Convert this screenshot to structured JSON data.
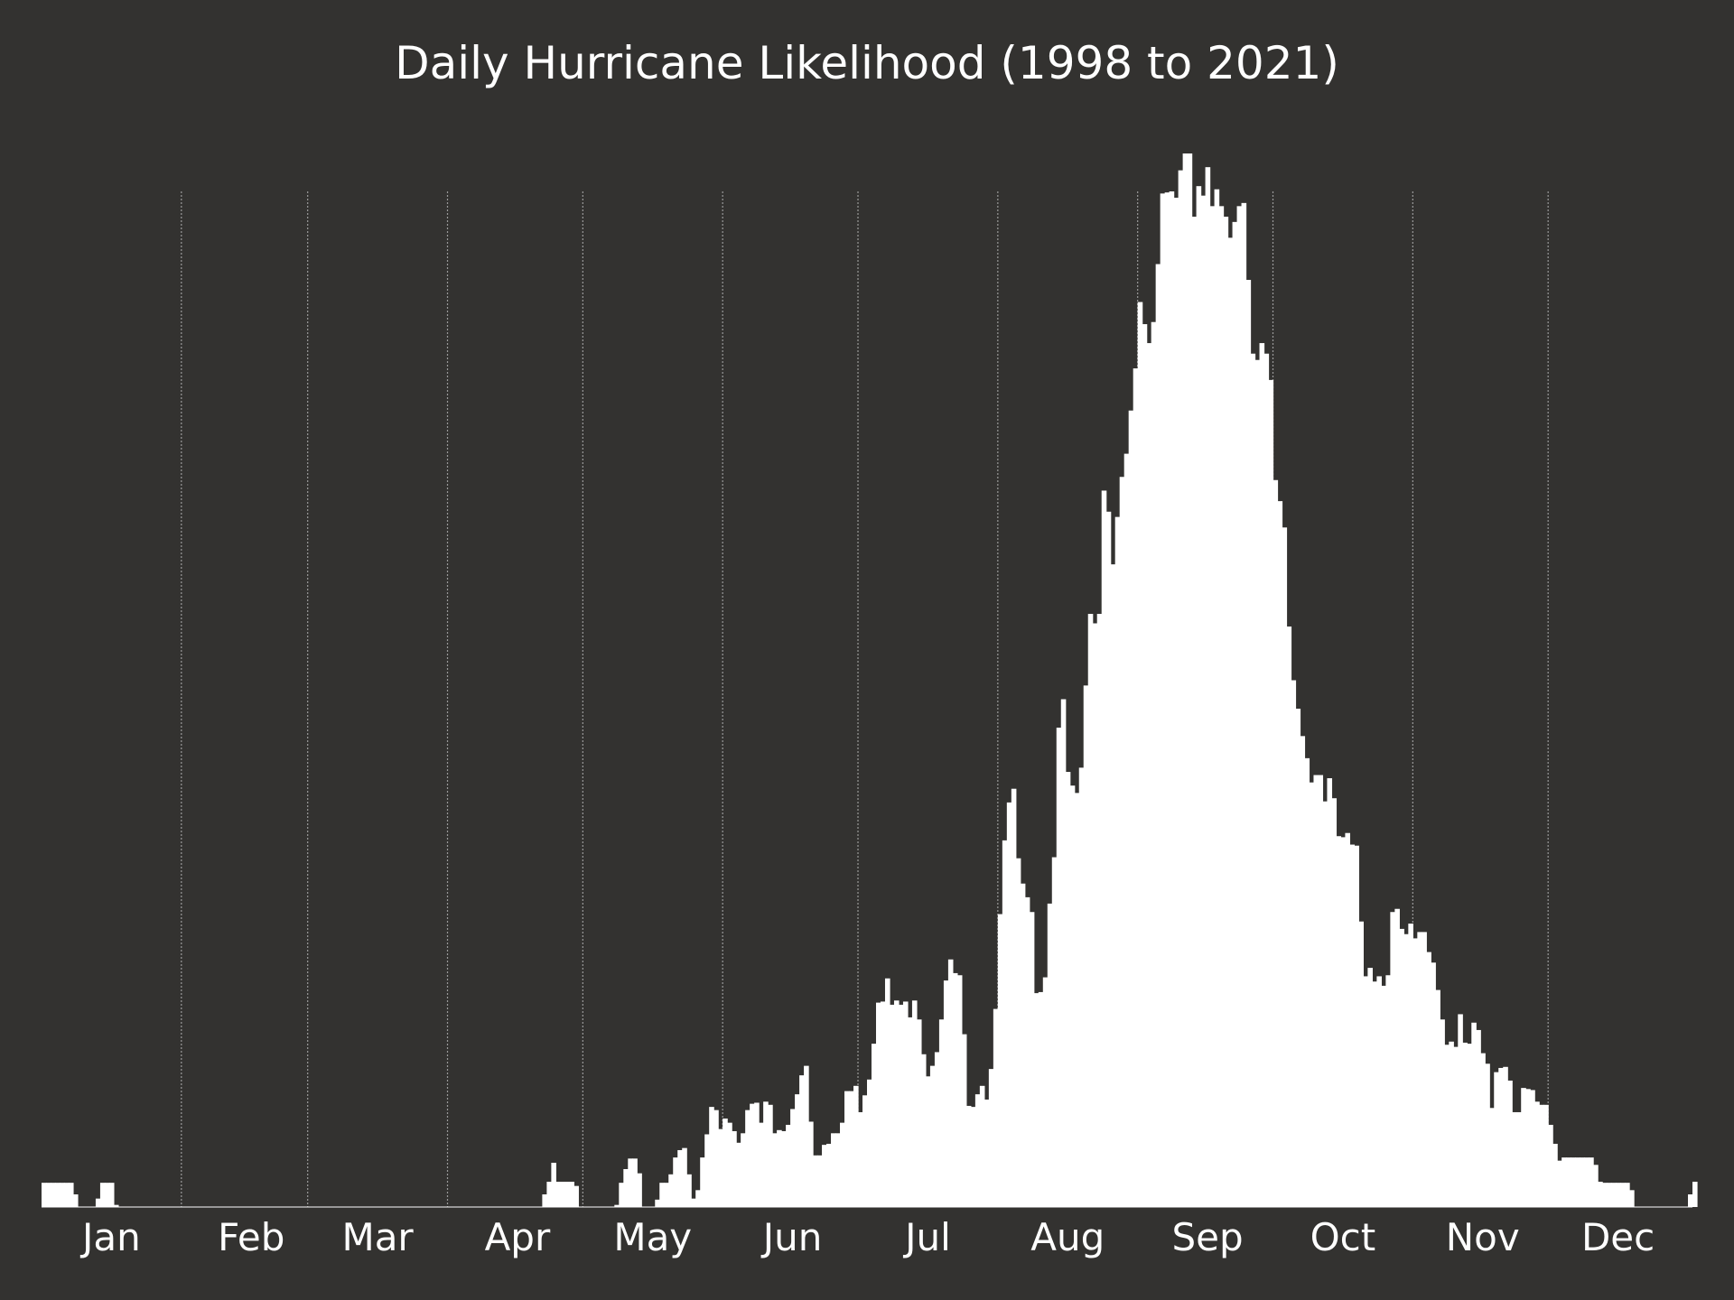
{
  "chart_data": {
    "type": "bar",
    "title": "Daily Hurricane Likelihood (1998 to 2021)",
    "xlabel": "",
    "ylabel": "",
    "x_range": [
      1,
      366
    ],
    "month_ticks": [
      {
        "label": "Jan",
        "day": 16
      },
      {
        "label": "Feb",
        "day": 47
      },
      {
        "label": "Mar",
        "day": 75
      },
      {
        "label": "Apr",
        "day": 106
      },
      {
        "label": "May",
        "day": 136
      },
      {
        "label": "Jun",
        "day": 167
      },
      {
        "label": "Jul",
        "day": 197
      },
      {
        "label": "Aug",
        "day": 228
      },
      {
        "label": "Sep",
        "day": 259
      },
      {
        "label": "Oct",
        "day": 289
      },
      {
        "label": "Nov",
        "day": 320
      },
      {
        "label": "Dec",
        "day": 350
      }
    ],
    "month_boundaries": [
      32,
      60,
      91,
      121,
      152,
      182,
      213,
      244,
      274,
      305,
      335
    ],
    "ylim": [
      0,
      1
    ],
    "grid": "vertical dotted lines at month boundaries",
    "y_axis_visible": false,
    "values": [
      0.023,
      0.023,
      0.023,
      0.023,
      0.023,
      0.023,
      0.023,
      0.012,
      0,
      0,
      0,
      0,
      0.008,
      0.023,
      0.023,
      0.023,
      0.002,
      0,
      0,
      0,
      0,
      0,
      0,
      0,
      0,
      0,
      0,
      0,
      0,
      0,
      0,
      0,
      0,
      0,
      0,
      0,
      0,
      0,
      0,
      0,
      0,
      0,
      0,
      0,
      0,
      0,
      0,
      0,
      0,
      0,
      0,
      0,
      0,
      0,
      0,
      0,
      0,
      0,
      0,
      0,
      0,
      0,
      0,
      0,
      0,
      0,
      0,
      0,
      0,
      0,
      0,
      0,
      0,
      0,
      0,
      0,
      0,
      0,
      0,
      0,
      0,
      0,
      0,
      0,
      0,
      0,
      0,
      0,
      0,
      0,
      0,
      0,
      0,
      0,
      0,
      0,
      0,
      0,
      0,
      0,
      0,
      0,
      0,
      0,
      0,
      0,
      0,
      0,
      0,
      0,
      0,
      0.012,
      0.024,
      0.042,
      0.024,
      0.024,
      0.024,
      0.024,
      0.02,
      0,
      0,
      0,
      0,
      0,
      0,
      0,
      0,
      0.002,
      0.023,
      0.036,
      0.046,
      0.046,
      0.032,
      0,
      0,
      0,
      0.007,
      0.023,
      0.023,
      0.031,
      0.047,
      0.054,
      0.056,
      0.031,
      0.008,
      0.016,
      0.047,
      0.069,
      0.095,
      0.092,
      0.074,
      0.084,
      0.08,
      0.072,
      0.061,
      0.07,
      0.092,
      0.098,
      0.099,
      0.08,
      0.1,
      0.097,
      0.07,
      0.073,
      0.072,
      0.078,
      0.093,
      0.107,
      0.125,
      0.134,
      0.081,
      0.049,
      0.049,
      0.059,
      0.06,
      0.07,
      0.07,
      0.08,
      0.11,
      0.11,
      0.115,
      0.09,
      0.106,
      0.121,
      0.155,
      0.194,
      0.195,
      0.217,
      0.192,
      0.196,
      0.192,
      0.195,
      0.18,
      0.196,
      0.178,
      0.145,
      0.124,
      0.134,
      0.147,
      0.178,
      0.215,
      0.235,
      0.222,
      0.22,
      0.164,
      0.096,
      0.095,
      0.107,
      0.115,
      0.102,
      0.131,
      0.188,
      0.278,
      0.348,
      0.384,
      0.397,
      0.331,
      0.307,
      0.294,
      0.28,
      0.203,
      0.204,
      0.218,
      0.288,
      0.332,
      0.455,
      0.482,
      0.413,
      0.4,
      0.393,
      0.417,
      0.495,
      0.563,
      0.554,
      0.563,
      0.68,
      0.66,
      0.61,
      0.655,
      0.693,
      0.715,
      0.756,
      0.796,
      0.859,
      0.838,
      0.82,
      0.84,
      0.895,
      0.962,
      0.963,
      0.964,
      0.958,
      0.984,
      1.0,
      1.0,
      0.94,
      0.969,
      0.96,
      0.987,
      0.95,
      0.966,
      0.95,
      0.94,
      0.92,
      0.935,
      0.95,
      0.953,
      0.88,
      0.81,
      0.804,
      0.82,
      0.81,
      0.785,
      0.69,
      0.67,
      0.645,
      0.551,
      0.5,
      0.473,
      0.447,
      0.426,
      0.403,
      0.41,
      0.41,
      0.385,
      0.407,
      0.388,
      0.352,
      0.351,
      0.355,
      0.344,
      0.343,
      0.271,
      0.219,
      0.227,
      0.214,
      0.219,
      0.21,
      0.22,
      0.28,
      0.283,
      0.264,
      0.259,
      0.269,
      0.255,
      0.261,
      0.261,
      0.242,
      0.232,
      0.206,
      0.178,
      0.154,
      0.157,
      0.152,
      0.183,
      0.156,
      0.155,
      0.175,
      0.168,
      0.146,
      0.136,
      0.094,
      0.128,
      0.132,
      0.133,
      0.12,
      0.09,
      0.09,
      0.113,
      0.112,
      0.111,
      0.1,
      0.097,
      0.097,
      0.078,
      0.06,
      0.044,
      0.047,
      0.047,
      0.047,
      0.047,
      0.047,
      0.047,
      0.047,
      0.04,
      0.024,
      0.023,
      0.023,
      0.023,
      0.023,
      0.023,
      0.023,
      0.016,
      0,
      0,
      0,
      0,
      0,
      0,
      0,
      0,
      0,
      0,
      0,
      0,
      0.012,
      0.024
    ],
    "colors": {
      "background": "#333230",
      "bars": "#ffffff",
      "text": "#ffffff",
      "grid": "#9a9a9a"
    }
  }
}
